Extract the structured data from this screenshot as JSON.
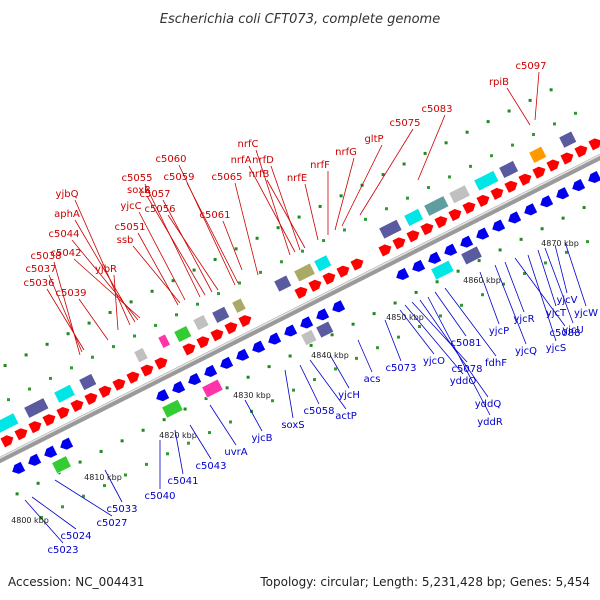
{
  "title": "Escherichia coli CFT073, complete genome",
  "footer": {
    "accession": "Accession: NC_004431",
    "stats": "Topology: circular; Length: 5,231,428 bp; Genes: 5,454"
  },
  "colors": {
    "forward_strand": "#ff0000",
    "reverse_strand": "#0000ee",
    "top_label": "#cc0000",
    "bottom_label": "#0000cc",
    "backbone": "#9a9a9a",
    "feature_palette": [
      "#00e5e5",
      "#5a5aa0",
      "#33cc33",
      "#ff33aa",
      "#aaaa66",
      "#ff9900",
      "#c0c0c0",
      "#5f9ea0"
    ]
  },
  "kbp_ticks": [
    "4800 kbp",
    "4810 kbp",
    "4820 kbp",
    "4830 kbp",
    "4840 kbp",
    "4850 kbp",
    "4860 kbp",
    "4870 kbp"
  ],
  "top_labels": [
    "yjbQ",
    "aphA",
    "c5044",
    "c5042",
    "c5038",
    "c5037",
    "c5036",
    "c5039",
    "yjbR",
    "c5051",
    "ssb",
    "yjcC",
    "c5055",
    "soxR",
    "c5057",
    "c5056",
    "c5060",
    "c5059",
    "c5065",
    "c5061",
    "nrfC",
    "nrfA",
    "nrfD",
    "nrfB",
    "nrfE",
    "nrfF",
    "nrfG",
    "gltP",
    "c5075",
    "c5083",
    "rpiB",
    "c5097"
  ],
  "bottom_labels": [
    "c5023",
    "c5024",
    "c5027",
    "c5033",
    "c5040",
    "c5041",
    "c5043",
    "uvrA",
    "yjcB",
    "soxS",
    "c5058",
    "actP",
    "yjcH",
    "acs",
    "c5073",
    "yjcO",
    "yddO",
    "c5078",
    "yddQ",
    "yddR",
    "c5081",
    "fdhF",
    "yjcP",
    "yjcQ",
    "yjcR",
    "c5088",
    "yjcS",
    "yjcT",
    "yjcU",
    "yjcV",
    "yjcW"
  ]
}
